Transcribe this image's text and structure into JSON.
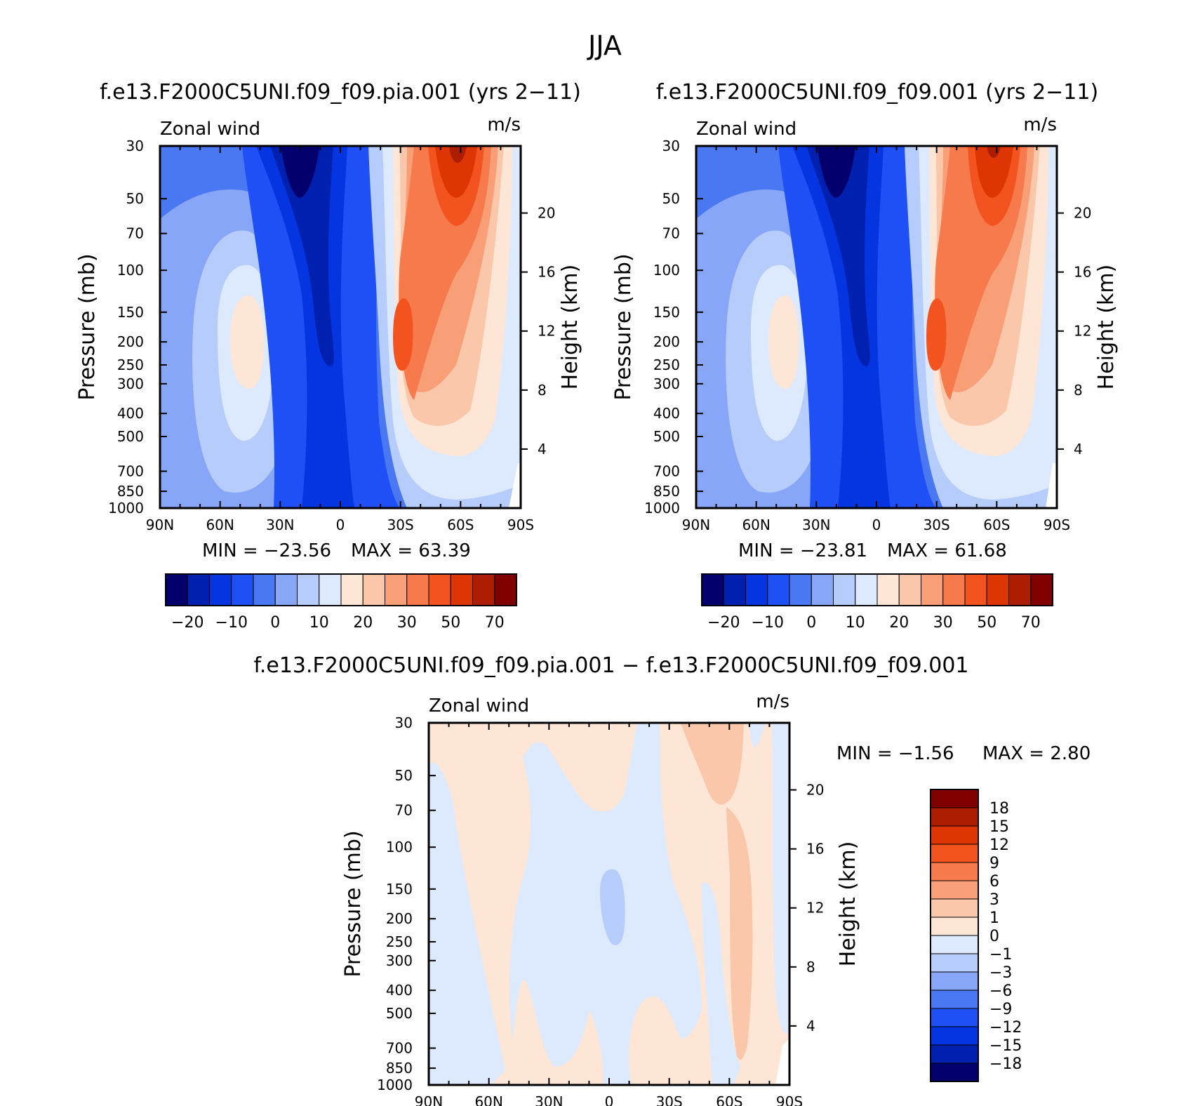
{
  "figure": {
    "title": "JJA",
    "diff_title": "f.e13.F2000C5UNI.f09_f09.pia.001 − f.e13.F2000C5UNI.f09_f09.001"
  },
  "chart_data": [
    {
      "type": "heatmap",
      "title": "f.e13.F2000C5UNI.f09_f09.pia.001 (yrs 2−11)",
      "subtitle": "Zonal wind",
      "units": "m/s",
      "xlabel": "",
      "ylabel": "Pressure (mb)",
      "y2label": "Height (km)",
      "x_ticks": [
        "90N",
        "60N",
        "30N",
        "0",
        "30S",
        "60S",
        "90S"
      ],
      "x_range": [
        90,
        -90
      ],
      "y_ticks": [
        30,
        50,
        70,
        100,
        150,
        200,
        250,
        300,
        400,
        500,
        700,
        850,
        1000
      ],
      "y_range": [
        30,
        1000
      ],
      "y2_ticks": [
        20,
        16,
        12,
        8,
        4
      ],
      "min_label": "MIN = −23.56",
      "max_label": "MAX = 63.39",
      "min": -23.56,
      "max": 63.39,
      "colorbar_labels": [
        "−20",
        "−10",
        "0",
        "10",
        "20",
        "30",
        "50",
        "70"
      ],
      "colorbar_colors": [
        "#03006d",
        "#0020b0",
        "#0535e0",
        "#1f50f5",
        "#4a78f2",
        "#87a6f7",
        "#b6cdfb",
        "#dde9fc",
        "#fde6d6",
        "#fbc7aa",
        "#f99f78",
        "#f67a4c",
        "#f2531f",
        "#dd3503",
        "#ad1d01",
        "#800000"
      ]
    },
    {
      "type": "heatmap",
      "title": "f.e13.F2000C5UNI.f09_f09.001 (yrs 2−11)",
      "subtitle": "Zonal wind",
      "units": "m/s",
      "xlabel": "",
      "ylabel": "Pressure (mb)",
      "y2label": "Height (km)",
      "x_ticks": [
        "90N",
        "60N",
        "30N",
        "0",
        "30S",
        "60S",
        "90S"
      ],
      "x_range": [
        90,
        -90
      ],
      "y_ticks": [
        30,
        50,
        70,
        100,
        150,
        200,
        250,
        300,
        400,
        500,
        700,
        850,
        1000
      ],
      "y_range": [
        30,
        1000
      ],
      "y2_ticks": [
        20,
        16,
        12,
        8,
        4
      ],
      "min_label": "MIN = −23.81",
      "max_label": "MAX = 61.68",
      "min": -23.81,
      "max": 61.68,
      "colorbar_labels": [
        "−20",
        "−10",
        "0",
        "10",
        "20",
        "30",
        "50",
        "70"
      ],
      "colorbar_colors": [
        "#03006d",
        "#0020b0",
        "#0535e0",
        "#1f50f5",
        "#4a78f2",
        "#87a6f7",
        "#b6cdfb",
        "#dde9fc",
        "#fde6d6",
        "#fbc7aa",
        "#f99f78",
        "#f67a4c",
        "#f2531f",
        "#dd3503",
        "#ad1d01",
        "#800000"
      ]
    },
    {
      "type": "heatmap",
      "title": "f.e13.F2000C5UNI.f09_f09.pia.001 − f.e13.F2000C5UNI.f09_f09.001",
      "subtitle": "Zonal wind",
      "units": "m/s",
      "xlabel": "",
      "ylabel": "Pressure (mb)",
      "y2label": "Height (km)",
      "x_ticks": [
        "90N",
        "60N",
        "30N",
        "0",
        "30S",
        "60S",
        "90S"
      ],
      "x_range": [
        90,
        -90
      ],
      "y_ticks": [
        30,
        50,
        70,
        100,
        150,
        200,
        250,
        300,
        400,
        500,
        700,
        850,
        1000
      ],
      "y_range": [
        30,
        1000
      ],
      "y2_ticks": [
        20,
        16,
        12,
        8,
        4
      ],
      "min_label": "MIN = −1.56",
      "max_label": "MAX = 2.80",
      "min": -1.56,
      "max": 2.8,
      "colorbar_labels": [
        "18",
        "15",
        "12",
        "9",
        "6",
        "3",
        "1",
        "0",
        "−1",
        "−3",
        "−6",
        "−9",
        "−12",
        "−15",
        "−18"
      ],
      "colorbar_colors": [
        "#800000",
        "#ad1d01",
        "#dd3503",
        "#f2531f",
        "#f67a4c",
        "#f99f78",
        "#fbc7aa",
        "#fde6d6",
        "#dde9fc",
        "#b6cdfb",
        "#87a6f7",
        "#4a78f2",
        "#1f50f5",
        "#0535e0",
        "#0020b0",
        "#03006d"
      ]
    }
  ]
}
